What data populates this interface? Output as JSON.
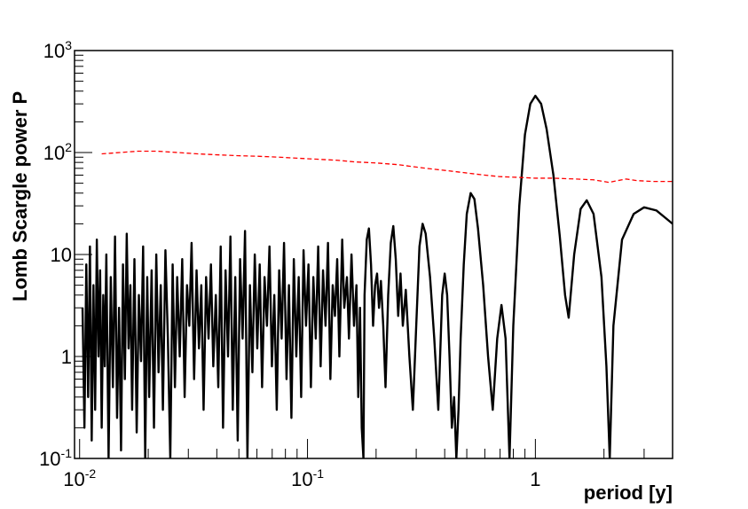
{
  "chart_data": {
    "type": "line",
    "xlabel": "period [y]",
    "ylabel": "Lomb Scargle power P",
    "xscale": "log",
    "yscale": "log",
    "xlim": [
      0.0095,
      4.0
    ],
    "ylim": [
      0.1,
      1000
    ],
    "grid": false,
    "legend": "none",
    "x_tick_labels": [
      {
        "value": 0.01,
        "base": "10",
        "exp": "-2"
      },
      {
        "value": 0.1,
        "base": "10",
        "exp": "-1"
      },
      {
        "value": 1,
        "base": "1",
        "exp": ""
      }
    ],
    "y_tick_labels": [
      {
        "value": 0.1,
        "base": "10",
        "exp": "-1"
      },
      {
        "value": 1,
        "base": "1",
        "exp": ""
      },
      {
        "value": 10,
        "base": "10",
        "exp": ""
      },
      {
        "value": 100,
        "base": "10",
        "exp": "2"
      },
      {
        "value": 1000,
        "base": "10",
        "exp": "3"
      }
    ],
    "series": [
      {
        "color": "#000000",
        "style": "solid",
        "points": [
          [
            0.0103,
            3.0
          ],
          [
            0.0105,
            0.2
          ],
          [
            0.0107,
            8.0
          ],
          [
            0.0109,
            0.4
          ],
          [
            0.0111,
            12.0
          ],
          [
            0.0113,
            0.15
          ],
          [
            0.0115,
            5.0
          ],
          [
            0.0117,
            0.3
          ],
          [
            0.0119,
            14.0
          ],
          [
            0.0121,
            1.0
          ],
          [
            0.0123,
            7.0
          ],
          [
            0.0125,
            0.2
          ],
          [
            0.0127,
            4.0
          ],
          [
            0.0129,
            0.8
          ],
          [
            0.0131,
            10.0
          ],
          [
            0.0134,
            0.1
          ],
          [
            0.0137,
            6.0
          ],
          [
            0.014,
            0.5
          ],
          [
            0.0143,
            15.0
          ],
          [
            0.0146,
            0.25
          ],
          [
            0.0149,
            3.0
          ],
          [
            0.0152,
            0.12
          ],
          [
            0.0155,
            8.0
          ],
          [
            0.0158,
            0.6
          ],
          [
            0.0161,
            16.0
          ],
          [
            0.0164,
            1.2
          ],
          [
            0.0167,
            5.0
          ],
          [
            0.017,
            0.3
          ],
          [
            0.0174,
            9.0
          ],
          [
            0.0178,
            0.18
          ],
          [
            0.0182,
            4.0
          ],
          [
            0.0186,
            0.9
          ],
          [
            0.019,
            12.0
          ],
          [
            0.0194,
            0.1
          ],
          [
            0.0198,
            6.0
          ],
          [
            0.0202,
            0.4
          ],
          [
            0.0207,
            7.0
          ],
          [
            0.0212,
            0.2
          ],
          [
            0.0217,
            10.0
          ],
          [
            0.0222,
            0.7
          ],
          [
            0.0227,
            5.0
          ],
          [
            0.0232,
            0.3
          ],
          [
            0.0238,
            11.0
          ],
          [
            0.0244,
            1.5
          ],
          [
            0.025,
            0.1
          ],
          [
            0.0256,
            8.0
          ],
          [
            0.0262,
            0.5
          ],
          [
            0.0268,
            6.0
          ],
          [
            0.0275,
            1.0
          ],
          [
            0.0282,
            9.0
          ],
          [
            0.0289,
            0.4
          ],
          [
            0.0296,
            5.0
          ],
          [
            0.0303,
            2.0
          ],
          [
            0.031,
            13.0
          ],
          [
            0.0318,
            0.6
          ],
          [
            0.0326,
            7.0
          ],
          [
            0.0334,
            1.2
          ],
          [
            0.0342,
            5.0
          ],
          [
            0.035,
            0.3
          ],
          [
            0.0359,
            6.0
          ],
          [
            0.0368,
            1.5
          ],
          [
            0.0377,
            8.0
          ],
          [
            0.0386,
            0.8
          ],
          [
            0.0396,
            4.0
          ],
          [
            0.0406,
            0.5
          ],
          [
            0.0416,
            12.0
          ],
          [
            0.0426,
            0.2
          ],
          [
            0.0437,
            7.0
          ],
          [
            0.0448,
            1.0
          ],
          [
            0.0459,
            15.0
          ],
          [
            0.047,
            0.3
          ],
          [
            0.0482,
            6.0
          ],
          [
            0.0494,
            0.15
          ],
          [
            0.0506,
            9.0
          ],
          [
            0.0519,
            1.5
          ],
          [
            0.0532,
            17.0
          ],
          [
            0.0545,
            0.1
          ],
          [
            0.0559,
            5.0
          ],
          [
            0.0573,
            0.7
          ],
          [
            0.0587,
            10.0
          ],
          [
            0.0602,
            1.2
          ],
          [
            0.0617,
            8.0
          ],
          [
            0.0632,
            0.5
          ],
          [
            0.0648,
            6.0
          ],
          [
            0.0664,
            2.0
          ],
          [
            0.0681,
            12.0
          ],
          [
            0.0698,
            0.8
          ],
          [
            0.0715,
            4.0
          ],
          [
            0.0733,
            0.3
          ],
          [
            0.0751,
            7.0
          ],
          [
            0.077,
            1.5
          ],
          [
            0.0789,
            13.0
          ],
          [
            0.0809,
            0.6
          ],
          [
            0.0829,
            5.0
          ],
          [
            0.085,
            0.25
          ],
          [
            0.0871,
            9.0
          ],
          [
            0.0893,
            1.0
          ],
          [
            0.0915,
            6.0
          ],
          [
            0.0938,
            0.4
          ],
          [
            0.0961,
            11.0
          ],
          [
            0.0985,
            2.0
          ],
          [
            0.101,
            8.0
          ],
          [
            0.1035,
            0.5
          ],
          [
            0.1061,
            6.0
          ],
          [
            0.1087,
            1.5
          ],
          [
            0.1114,
            12.0
          ],
          [
            0.1142,
            0.8
          ],
          [
            0.117,
            7.0
          ],
          [
            0.12,
            2.0
          ],
          [
            0.123,
            13.0
          ],
          [
            0.126,
            0.6
          ],
          [
            0.129,
            5.0
          ],
          [
            0.132,
            2.5
          ],
          [
            0.135,
            9.0
          ],
          [
            0.138,
            1.0
          ],
          [
            0.142,
            14.0
          ],
          [
            0.145,
            3.0
          ],
          [
            0.149,
            6.0
          ],
          [
            0.152,
            1.5
          ],
          [
            0.156,
            10.0
          ],
          [
            0.16,
            2.0
          ],
          [
            0.164,
            5.0
          ],
          [
            0.167,
            0.4
          ],
          [
            0.17,
            3.0
          ],
          [
            0.173,
            0.2
          ],
          [
            0.176,
            0.1
          ],
          [
            0.178,
            4.0
          ],
          [
            0.182,
            14.0
          ],
          [
            0.186,
            18.0
          ],
          [
            0.19,
            8.0
          ],
          [
            0.194,
            2.0
          ],
          [
            0.198,
            5.0
          ],
          [
            0.202,
            6.5
          ],
          [
            0.206,
            3.0
          ],
          [
            0.21,
            5.5
          ],
          [
            0.215,
            2.0
          ],
          [
            0.22,
            0.5
          ],
          [
            0.226,
            4.0
          ],
          [
            0.232,
            13.0
          ],
          [
            0.238,
            19.0
          ],
          [
            0.244,
            9.0
          ],
          [
            0.25,
            2.5
          ],
          [
            0.256,
            6.5
          ],
          [
            0.262,
            2.0
          ],
          [
            0.27,
            4.5
          ],
          [
            0.28,
            1.0
          ],
          [
            0.29,
            0.3
          ],
          [
            0.3,
            2.0
          ],
          [
            0.31,
            12.0
          ],
          [
            0.32,
            20.0
          ],
          [
            0.33,
            16.0
          ],
          [
            0.345,
            6.0
          ],
          [
            0.36,
            1.5
          ],
          [
            0.375,
            0.3
          ],
          [
            0.39,
            4.0
          ],
          [
            0.4,
            6.5
          ],
          [
            0.41,
            4.0
          ],
          [
            0.42,
            1.0
          ],
          [
            0.43,
            0.2
          ],
          [
            0.44,
            0.4
          ],
          [
            0.45,
            0.1
          ],
          [
            0.46,
            0.3
          ],
          [
            0.47,
            1.5
          ],
          [
            0.485,
            8.0
          ],
          [
            0.5,
            25.0
          ],
          [
            0.52,
            40.0
          ],
          [
            0.54,
            35.0
          ],
          [
            0.56,
            18.0
          ],
          [
            0.59,
            5.0
          ],
          [
            0.62,
            1.0
          ],
          [
            0.65,
            0.3
          ],
          [
            0.68,
            1.5
          ],
          [
            0.71,
            3.2
          ],
          [
            0.74,
            1.5
          ],
          [
            0.77,
            0.1
          ],
          [
            0.8,
            2.0
          ],
          [
            0.85,
            30.0
          ],
          [
            0.9,
            150.0
          ],
          [
            0.95,
            300.0
          ],
          [
            1.0,
            360.0
          ],
          [
            1.06,
            300.0
          ],
          [
            1.12,
            170.0
          ],
          [
            1.2,
            60.0
          ],
          [
            1.28,
            15.0
          ],
          [
            1.35,
            4.0
          ],
          [
            1.4,
            2.4
          ],
          [
            1.48,
            10.0
          ],
          [
            1.58,
            28.0
          ],
          [
            1.68,
            34.0
          ],
          [
            1.8,
            25.0
          ],
          [
            1.95,
            6.0
          ],
          [
            2.05,
            0.8
          ],
          [
            2.12,
            0.1
          ],
          [
            2.2,
            2.0
          ],
          [
            2.4,
            14.0
          ],
          [
            2.7,
            25.0
          ],
          [
            3.0,
            29.0
          ],
          [
            3.4,
            27.0
          ],
          [
            3.8,
            22.0
          ],
          [
            4.0,
            20.0
          ]
        ]
      },
      {
        "color": "#ff0000",
        "style": "dashed",
        "points": [
          [
            0.0125,
            97.0
          ],
          [
            0.015,
            100.0
          ],
          [
            0.018,
            103.0
          ],
          [
            0.022,
            103.0
          ],
          [
            0.027,
            100.0
          ],
          [
            0.033,
            97.0
          ],
          [
            0.04,
            95.0
          ],
          [
            0.05,
            93.0
          ],
          [
            0.06,
            92.0
          ],
          [
            0.075,
            90.0
          ],
          [
            0.09,
            88.0
          ],
          [
            0.11,
            86.0
          ],
          [
            0.135,
            84.0
          ],
          [
            0.16,
            81.0
          ],
          [
            0.2,
            79.0
          ],
          [
            0.25,
            76.0
          ],
          [
            0.3,
            72.0
          ],
          [
            0.35,
            69.0
          ],
          [
            0.42,
            66.0
          ],
          [
            0.5,
            63.0
          ],
          [
            0.6,
            60.0
          ],
          [
            0.7,
            58.0
          ],
          [
            0.85,
            57.0
          ],
          [
            1.0,
            56.0
          ],
          [
            1.2,
            56.0
          ],
          [
            1.5,
            55.0
          ],
          [
            1.8,
            54.0
          ],
          [
            2.1,
            51.0
          ],
          [
            2.5,
            55.0
          ],
          [
            2.8,
            53.0
          ],
          [
            3.3,
            52.0
          ],
          [
            4.0,
            52.0
          ]
        ]
      }
    ]
  }
}
